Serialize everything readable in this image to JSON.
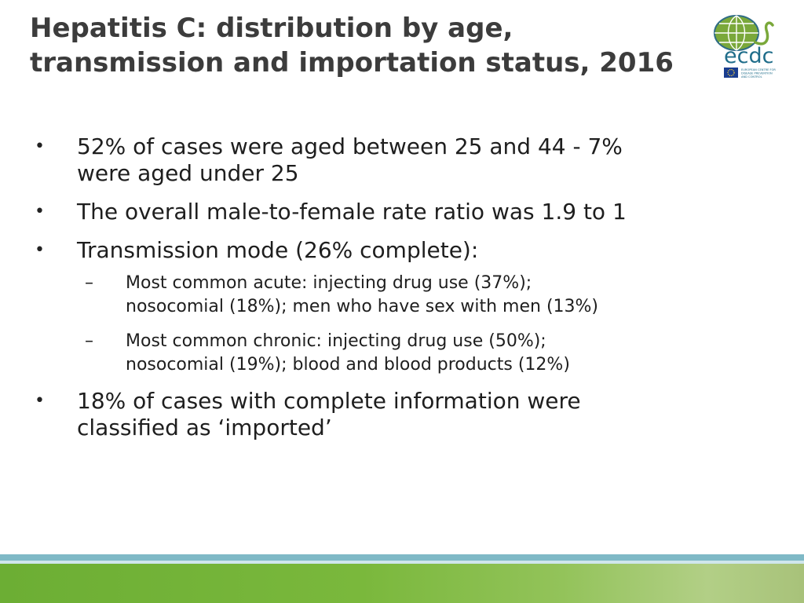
{
  "slide": {
    "title_lines": [
      "Hepatitis C: distribution by age,",
      "transmission and importation status, 2016"
    ],
    "logo": {
      "icon": "ecdc-globe-logo-icon",
      "wordmark": "ecdc",
      "tagline_lines": [
        "EUROPEAN CENTRE FOR",
        "DISEASE PREVENTION",
        "AND CONTROL"
      ],
      "colors": {
        "globe": "#7aa83a",
        "globe_stroke": "#2f6c86",
        "wordmark": "#1f6d8a",
        "eu_flag": "#1a3d8f"
      }
    },
    "bullets": [
      {
        "marker": "•",
        "lines": [
          "52% of cases were aged between 25 and 44 - 7%",
          "were aged under 25"
        ]
      },
      {
        "marker": "•",
        "lines": [
          "The overall male-to-female rate ratio was 1.9 to 1"
        ]
      },
      {
        "marker": "•",
        "lines": [
          "Transmission mode (26% complete):"
        ],
        "sub_bullets": [
          {
            "marker": "–",
            "lines": [
              "Most common acute: injecting drug use (37%);",
              "nosocomial (18%); men who have sex with men (13%)"
            ]
          },
          {
            "marker": "–",
            "lines": [
              "Most common chronic: injecting drug use (50%);",
              "nosocomial (19%); blood and blood products (12%)"
            ]
          }
        ]
      },
      {
        "marker": "•",
        "lines": [
          "18% of cases with complete information were",
          "classified as ‘imported’"
        ]
      }
    ],
    "footer": {
      "colors": {
        "teal": "#7fb9c6",
        "green": "#6cae34"
      }
    }
  }
}
